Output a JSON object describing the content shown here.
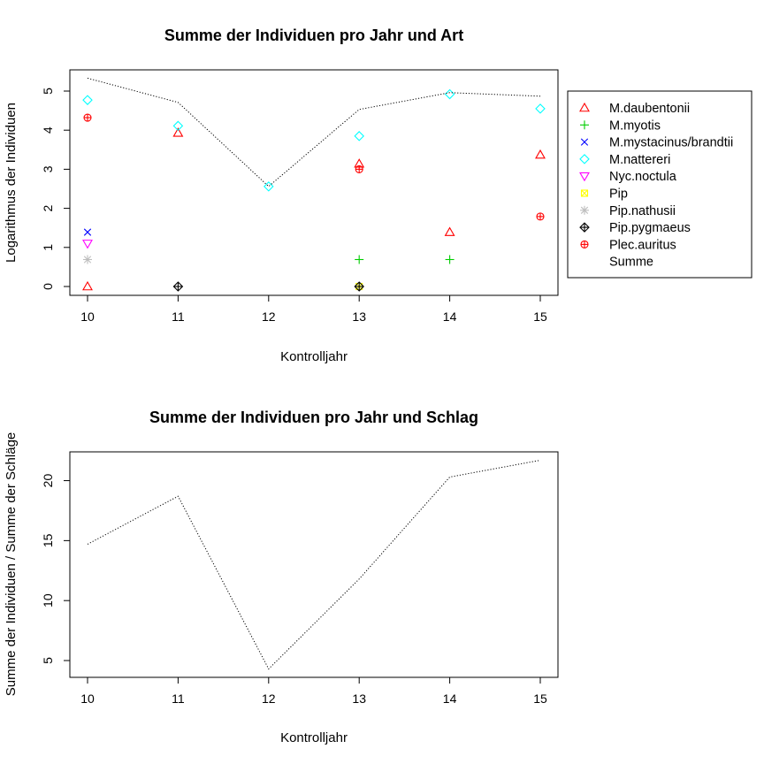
{
  "chart_data": [
    {
      "type": "scatter",
      "title": "Summe der Individuen pro Jahr und Art",
      "xlabel": "Kontrolljahr",
      "ylabel": "Logarithmus der Individuen",
      "xlim": [
        10,
        15
      ],
      "ylim": [
        0,
        5
      ],
      "x_ticks": [
        10,
        11,
        12,
        13,
        14,
        15
      ],
      "y_ticks": [
        0,
        1,
        2,
        3,
        4,
        5
      ],
      "legend_position": "right",
      "series": [
        {
          "name": "M.daubentonii",
          "marker": "triangle-up",
          "color": "#ff0000",
          "points": [
            [
              10,
              0.0
            ],
            [
              11,
              3.93
            ],
            [
              13,
              3.14
            ],
            [
              14,
              1.39
            ],
            [
              15,
              3.37
            ]
          ]
        },
        {
          "name": "M.myotis",
          "marker": "plus",
          "color": "#00cd00",
          "points": [
            [
              13,
              0.69
            ],
            [
              14,
              0.69
            ]
          ]
        },
        {
          "name": "M.mystacinus/brandtii",
          "marker": "x",
          "color": "#0000ff",
          "points": [
            [
              10,
              1.39
            ]
          ]
        },
        {
          "name": "M.nattereri",
          "marker": "diamond",
          "color": "#00ffff",
          "points": [
            [
              10,
              4.77
            ],
            [
              11,
              4.11
            ],
            [
              12,
              2.56
            ],
            [
              13,
              3.85
            ],
            [
              14,
              4.92
            ],
            [
              15,
              4.55
            ]
          ]
        },
        {
          "name": "Nyc.noctula",
          "marker": "triangle-down",
          "color": "#ff00ff",
          "points": [
            [
              10,
              1.1
            ]
          ]
        },
        {
          "name": "Pip",
          "marker": "square-x",
          "color": "#ffff00",
          "points": [
            [
              13,
              0.0
            ]
          ]
        },
        {
          "name": "Pip.nathusii",
          "marker": "asterisk",
          "color": "#bebebe",
          "points": [
            [
              10,
              0.69
            ]
          ]
        },
        {
          "name": "Pip.pygmaeus",
          "marker": "diamond-plus",
          "color": "#000000",
          "points": [
            [
              11,
              0.0
            ],
            [
              13,
              0.0
            ]
          ]
        },
        {
          "name": "Plec.auritus",
          "marker": "circle-plus",
          "color": "#ff0000",
          "points": [
            [
              10,
              4.32
            ],
            [
              13,
              3.0
            ],
            [
              15,
              1.79
            ]
          ]
        },
        {
          "name": "Summe",
          "marker": "line",
          "color": "#000000",
          "line_style": "dotted",
          "points": [
            [
              10,
              5.33
            ],
            [
              11,
              4.71
            ],
            [
              12,
              2.56
            ],
            [
              13,
              4.53
            ],
            [
              14,
              4.96
            ],
            [
              15,
              4.87
            ]
          ]
        }
      ]
    },
    {
      "type": "line",
      "title": "Summe der Individuen pro Jahr und Schlag",
      "xlabel": "Kontrolljahr",
      "ylabel": "Summe der Individuen / Summe der Schläge",
      "xlim": [
        10,
        15
      ],
      "ylim": [
        3.6,
        22.4
      ],
      "x_ticks": [
        10,
        11,
        12,
        13,
        14,
        15
      ],
      "y_ticks": [
        5,
        10,
        15,
        20
      ],
      "line_style": "dotted",
      "color": "#000000",
      "x": [
        10,
        11,
        12,
        13,
        14,
        15
      ],
      "values": [
        14.7,
        18.7,
        4.3,
        11.8,
        20.3,
        21.7
      ]
    }
  ]
}
